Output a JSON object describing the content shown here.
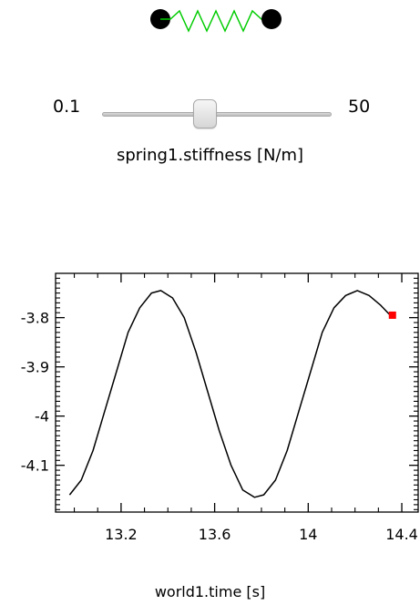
{
  "spring": {
    "mass_color": "#000000",
    "coil_color": "#00cc00"
  },
  "slider": {
    "min_label": "0.1",
    "max_label": "50",
    "min": 0.1,
    "max": 50,
    "value": 22.5,
    "label": "spring1.stiffness [N/m]"
  },
  "plot": {
    "x_axis_label": "world1.time [s]",
    "x_ticks": [
      "13.2",
      "13.6",
      "14",
      "14.4"
    ],
    "y_ticks": [
      "-3.8",
      "-3.9",
      "-4",
      "-4.1"
    ],
    "line_color": "#000000",
    "marker_color": "#ff0000"
  },
  "chart_data": {
    "type": "line",
    "xlabel": "world1.time [s]",
    "ylabel": "",
    "xlim": [
      12.92,
      14.47
    ],
    "ylim": [
      -4.195,
      -3.71
    ],
    "x_tick_values": [
      13.2,
      13.6,
      14,
      14.4
    ],
    "y_tick_values": [
      -3.8,
      -3.9,
      -4,
      -4.1
    ],
    "grid": false,
    "series": [
      {
        "x": [
          12.98,
          13.03,
          13.08,
          13.13,
          13.18,
          13.23,
          13.28,
          13.33,
          13.37,
          13.42,
          13.47,
          13.52,
          13.57,
          13.62,
          13.67,
          13.72,
          13.77,
          13.81,
          13.86,
          13.91,
          13.96,
          14.01,
          14.06,
          14.11,
          14.16,
          14.21,
          14.26,
          14.31,
          14.35
        ],
        "y": [
          -4.16,
          -4.13,
          -4.07,
          -3.99,
          -3.91,
          -3.83,
          -3.78,
          -3.75,
          -3.745,
          -3.76,
          -3.8,
          -3.87,
          -3.95,
          -4.03,
          -4.1,
          -4.15,
          -4.165,
          -4.16,
          -4.13,
          -4.07,
          -3.99,
          -3.91,
          -3.83,
          -3.78,
          -3.755,
          -3.745,
          -3.755,
          -3.775,
          -3.795
        ]
      }
    ],
    "marker": {
      "x": 14.36,
      "y": -3.795
    }
  }
}
